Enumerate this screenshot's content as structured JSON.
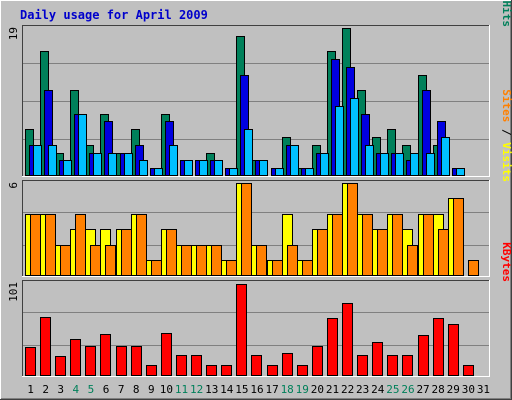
{
  "chart_data": {
    "title": "Daily usage for April 2009",
    "type": "bar",
    "days": [
      1,
      2,
      3,
      4,
      5,
      6,
      7,
      8,
      9,
      10,
      11,
      12,
      13,
      14,
      15,
      16,
      17,
      18,
      19,
      20,
      21,
      22,
      23,
      24,
      25,
      26,
      27,
      28,
      29,
      30,
      31
    ],
    "weekend_days": [
      4,
      5,
      11,
      12,
      18,
      19,
      25,
      26
    ],
    "colors": {
      "background": "#c0c0c0",
      "title": "#0000cc",
      "weekday_label": "#000000",
      "weekend_label": "#00805a",
      "grid": "#808080",
      "hits": "#00805a",
      "files": "#0000e0",
      "pages": "#00c0ff",
      "visits": "#ffff00",
      "sites": "#ff8000",
      "kbytes": "#ff0000"
    },
    "panels": [
      {
        "id": "hits_files_pages",
        "ymax_label": "19",
        "ymax": 19,
        "axis_label": [
          {
            "text": "Pages",
            "color": "#00c0ff"
          },
          {
            "text": " / ",
            "color": "#000000"
          },
          {
            "text": "Files",
            "color": "#0000e0"
          },
          {
            "text": " / ",
            "color": "#000000"
          },
          {
            "text": "Hits",
            "color": "#00805a"
          }
        ],
        "series": [
          {
            "name": "Hits",
            "color": "#00805a",
            "values": [
              6,
              16,
              3,
              11,
              4,
              8,
              3,
              6,
              0,
              8,
              0,
              0,
              3,
              0,
              18,
              2,
              0,
              5,
              1,
              4,
              16,
              19,
              11,
              5,
              6,
              4,
              13,
              4,
              0,
              0,
              0
            ]
          },
          {
            "name": "Files",
            "color": "#0000e0",
            "values": [
              4,
              11,
              2,
              8,
              3,
              7,
              3,
              4,
              1,
              7,
              2,
              2,
              2,
              1,
              13,
              2,
              1,
              4,
              1,
              3,
              15,
              14,
              8,
              3,
              3,
              2,
              11,
              7,
              1,
              0,
              0
            ]
          },
          {
            "name": "Pages",
            "color": "#00c0ff",
            "values": [
              4,
              4,
              2,
              8,
              3,
              3,
              3,
              2,
              1,
              4,
              2,
              2,
              2,
              1,
              6,
              2,
              1,
              4,
              1,
              3,
              9,
              10,
              4,
              3,
              3,
              3,
              3,
              5,
              1,
              0,
              0
            ]
          }
        ]
      },
      {
        "id": "visits_sites",
        "ymax_label": "6",
        "ymax": 6,
        "axis_label": [
          {
            "text": "Sites",
            "color": "#ff8000"
          },
          {
            "text": " / ",
            "color": "#000000"
          },
          {
            "text": "Visits",
            "color": "#ffff00"
          }
        ],
        "series": [
          {
            "name": "Visits",
            "color": "#ffff00",
            "values": [
              4,
              4,
              2,
              3,
              3,
              3,
              3,
              4,
              1,
              3,
              2,
              2,
              2,
              1,
              6,
              2,
              1,
              4,
              1,
              3,
              4,
              6,
              4,
              3,
              4,
              3,
              4,
              4,
              5,
              0,
              0
            ]
          },
          {
            "name": "Sites",
            "color": "#ff8000",
            "values": [
              4,
              4,
              2,
              4,
              2,
              2,
              3,
              4,
              1,
              3,
              2,
              2,
              2,
              1,
              6,
              2,
              1,
              2,
              1,
              3,
              4,
              6,
              4,
              3,
              4,
              2,
              4,
              3,
              5,
              1,
              0
            ]
          }
        ]
      },
      {
        "id": "kbytes",
        "ymax_label": "101",
        "ymax": 101,
        "axis_label": [
          {
            "text": "KBytes",
            "color": "#ff0000"
          }
        ],
        "series": [
          {
            "name": "KBytes",
            "color": "#ff0000",
            "values": [
              32,
              64,
              22,
              40,
              33,
              46,
              33,
              33,
              12,
              47,
              23,
              23,
              12,
              12,
              100,
              23,
              12,
              25,
              12,
              33,
              63,
              79,
              23,
              37,
              23,
              23,
              44,
              63,
              56,
              12,
              0
            ]
          }
        ]
      }
    ]
  }
}
